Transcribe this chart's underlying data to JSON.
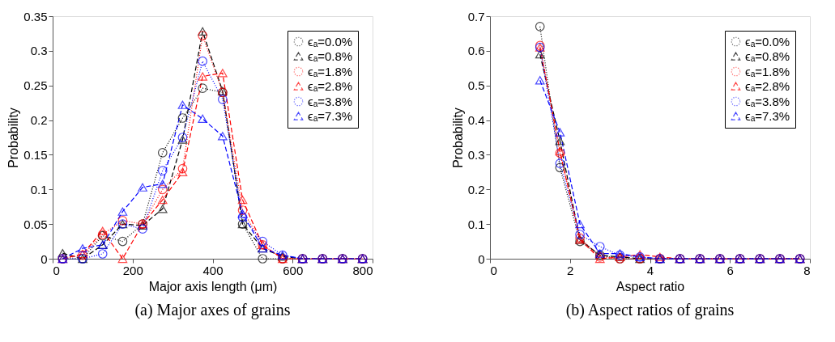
{
  "chart_data": [
    {
      "type": "line",
      "title": "(a) Major axes of grains",
      "xlabel": "Major axis length (μm)",
      "ylabel": "Probability",
      "x": [
        25,
        75,
        125,
        175,
        225,
        275,
        325,
        375,
        425,
        475,
        525,
        575,
        625,
        675,
        725,
        775
      ],
      "xlim": [
        0,
        800
      ],
      "xticks": [
        0,
        200,
        400,
        600,
        800
      ],
      "ylim": [
        0,
        0.35
      ],
      "yticks": [
        0,
        0.05,
        0.1,
        0.15,
        0.2,
        0.25,
        0.3,
        0.35
      ],
      "grid": false,
      "legend": "top right",
      "series": [
        {
          "name": "ϵₐ=0.0%",
          "color": "#000000",
          "marker": "circle",
          "line_style": "dotted",
          "values": [
            0,
            0,
            0.033,
            0.025,
            0.05,
            0.153,
            0.203,
            0.246,
            0.24,
            0.05,
            0,
            0,
            0,
            0,
            0,
            0
          ]
        },
        {
          "name": "ϵₐ=0.8%",
          "color": "#000000",
          "marker": "triangle",
          "line_style": "dashed",
          "values": [
            0.008,
            0,
            0.02,
            0.05,
            0.048,
            0.072,
            0.172,
            0.328,
            0.242,
            0.05,
            0.015,
            0.003,
            0,
            0,
            0,
            0
          ]
        },
        {
          "name": "ϵₐ=1.8%",
          "color": "#ff0000",
          "marker": "circle",
          "line_style": "dotted",
          "values": [
            0,
            0.005,
            0.035,
            0.055,
            0.05,
            0.1,
            0.13,
            0.322,
            0.24,
            0.07,
            0.02,
            0,
            0,
            0,
            0,
            0
          ]
        },
        {
          "name": "ϵₐ=2.8%",
          "color": "#ff0000",
          "marker": "triangle",
          "line_style": "dashed",
          "values": [
            0,
            0.007,
            0.04,
            0,
            0.05,
            0.085,
            0.125,
            0.263,
            0.268,
            0.085,
            0.02,
            0,
            0,
            0,
            0,
            0
          ]
        },
        {
          "name": "ϵₐ=3.8%",
          "color": "#0000ff",
          "marker": "circle",
          "line_style": "dotted",
          "values": [
            0,
            0,
            0.007,
            0.05,
            0.043,
            0.127,
            0.175,
            0.285,
            0.23,
            0.06,
            0.025,
            0.005,
            0,
            0,
            0,
            0
          ]
        },
        {
          "name": "ϵₐ=7.3%",
          "color": "#0000ff",
          "marker": "triangle",
          "line_style": "dashed",
          "values": [
            0,
            0.015,
            0.02,
            0.068,
            0.103,
            0.108,
            0.222,
            0.202,
            0.177,
            0.065,
            0.015,
            0.005,
            0,
            0,
            0,
            0
          ]
        }
      ]
    },
    {
      "type": "line",
      "title": "(b) Aspect ratios of grains",
      "xlabel": "Aspect ratio",
      "ylabel": "Probability",
      "x": [
        1.25,
        1.75,
        2.25,
        2.75,
        3.25,
        3.75,
        4.25,
        4.75,
        5.25,
        5.75,
        6.25,
        6.75,
        7.25,
        7.75
      ],
      "xlim": [
        0,
        8
      ],
      "xticks": [
        0,
        2,
        4,
        6,
        8
      ],
      "ylim": [
        0,
        0.7
      ],
      "yticks": [
        0,
        0.1,
        0.2,
        0.3,
        0.4,
        0.5,
        0.6,
        0.7
      ],
      "grid": false,
      "legend": "top right",
      "series": [
        {
          "name": "ϵₐ=0.0%",
          "color": "#000000",
          "marker": "circle",
          "line_style": "dotted",
          "values": [
            0.67,
            0.263,
            0.05,
            0.01,
            0,
            0,
            0,
            0,
            0,
            0,
            0,
            0,
            0,
            0
          ]
        },
        {
          "name": "ϵₐ=0.8%",
          "color": "#000000",
          "marker": "triangle",
          "line_style": "dashed",
          "values": [
            0.59,
            0.34,
            0.055,
            0.01,
            0.005,
            0,
            0,
            0,
            0,
            0,
            0,
            0,
            0,
            0
          ]
        },
        {
          "name": "ϵₐ=1.8%",
          "color": "#ff0000",
          "marker": "circle",
          "line_style": "dotted",
          "values": [
            0.615,
            0.305,
            0.06,
            0.005,
            0,
            0,
            0,
            0,
            0,
            0,
            0,
            0,
            0,
            0
          ]
        },
        {
          "name": "ϵₐ=2.8%",
          "color": "#ff0000",
          "marker": "triangle",
          "line_style": "dashed",
          "values": [
            0.61,
            0.31,
            0.055,
            0,
            0.005,
            0.012,
            0.005,
            0,
            0,
            0,
            0,
            0,
            0,
            0
          ]
        },
        {
          "name": "ϵₐ=3.8%",
          "color": "#0000ff",
          "marker": "circle",
          "line_style": "dotted",
          "values": [
            0.61,
            0.275,
            0.07,
            0.035,
            0.01,
            0.005,
            0,
            0,
            0,
            0,
            0,
            0,
            0,
            0
          ]
        },
        {
          "name": "ϵₐ=7.3%",
          "color": "#0000ff",
          "marker": "triangle",
          "line_style": "dashed",
          "values": [
            0.515,
            0.365,
            0.1,
            0.015,
            0.015,
            0.005,
            0,
            0,
            0,
            0,
            0,
            0,
            0,
            0
          ]
        }
      ]
    }
  ]
}
